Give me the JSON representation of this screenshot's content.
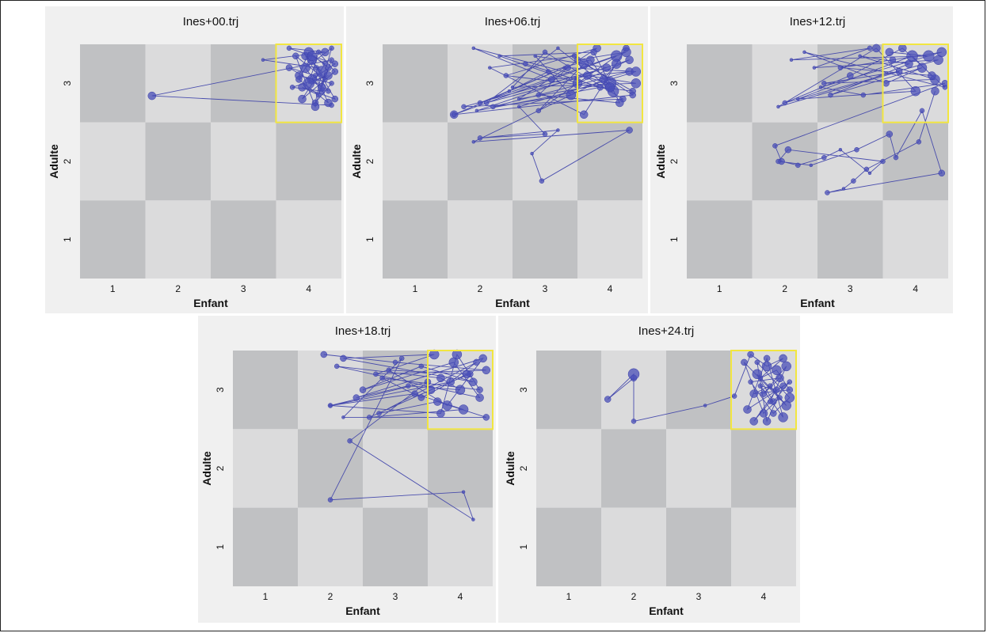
{
  "colors": {
    "page_bg": "#ffffff",
    "panel_bg": "#f0f0f0",
    "cell_dark": "#c0c1c3",
    "cell_light": "#dbdbdc",
    "highlight": "#f2e640",
    "trajectory": "#3a3ea8",
    "marker_fill": "#4a4fb8"
  },
  "chart_data": [
    {
      "type": "scatter",
      "title": "Ines+00.trj",
      "xlabel": "Enfant",
      "ylabel": "Adulte",
      "xticks": [
        "1",
        "2",
        "3",
        "4"
      ],
      "yticks": [
        "1",
        "2",
        "3"
      ],
      "xlim": [
        0.5,
        4.5
      ],
      "ylim": [
        0.5,
        3.5
      ],
      "highlight_cell": [
        4,
        3
      ],
      "x": [
        4.12,
        3.3,
        4.25,
        3.7,
        4.4,
        4.05,
        4.3,
        3.95,
        4.2,
        4.1,
        4.35,
        3.85,
        4.0,
        4.3,
        4.15,
        3.9,
        4.4,
        4.05,
        4.25,
        3.8,
        4.1,
        4.35,
        3.95,
        4.2,
        3.75,
        4.3,
        4.0,
        4.15,
        4.4,
        3.9,
        4.25,
        4.05,
        3.85,
        4.3,
        4.1,
        3.7,
        4.2,
        4.35,
        1.6,
        4.35
      ],
      "y": [
        3.2,
        3.3,
        3.4,
        3.45,
        3.25,
        3.05,
        2.9,
        3.35,
        3.15,
        2.75,
        3.0,
        3.1,
        3.4,
        3.2,
        2.85,
        2.95,
        2.8,
        3.3,
        3.05,
        3.35,
        2.7,
        3.45,
        3.2,
        2.9,
        2.95,
        3.1,
        3.0,
        3.4,
        3.15,
        2.8,
        3.25,
        3.35,
        3.05,
        2.75,
        3.1,
        3.2,
        2.95,
        3.3,
        2.84,
        2.72
      ],
      "size": [
        3,
        2,
        5,
        3,
        4,
        6,
        3,
        5,
        7,
        4,
        3,
        5,
        6,
        4,
        3,
        5,
        4,
        6,
        3,
        4,
        5,
        3,
        6,
        4,
        3,
        5,
        7,
        3,
        4,
        5,
        3,
        6,
        4,
        5,
        3,
        4,
        5,
        3,
        5,
        3
      ]
    },
    {
      "type": "scatter",
      "title": "Ines+06.trj",
      "xlabel": "Enfant",
      "ylabel": "Adulte",
      "xticks": [
        "1",
        "2",
        "3",
        "4"
      ],
      "yticks": [
        "1",
        "2",
        "3"
      ],
      "xlim": [
        0.5,
        4.5
      ],
      "ylim": [
        0.5,
        3.5
      ],
      "highlight_cell": [
        4,
        3
      ],
      "x": [
        3.5,
        4.25,
        2.0,
        3.3,
        1.6,
        4.1,
        2.9,
        3.6,
        4.35,
        2.4,
        3.8,
        2.6,
        4.0,
        1.9,
        3.1,
        4.3,
        2.2,
        3.4,
        2.85,
        3.95,
        1.75,
        4.2,
        3.0,
        2.5,
        4.4,
        3.65,
        2.1,
        3.2,
        4.05,
        2.7,
        3.85,
        1.95,
        4.3,
        3.5,
        2.3,
        3.75,
        4.15,
        2.9,
        3.35,
        4.4,
        2.6,
        3.0,
        2.0,
        3.2,
        2.8,
        2.95,
        4.3,
        1.9,
        3.9,
        4.1,
        4.25,
        3.6,
        2.15,
        3.45,
        4.35,
        1.6,
        2.45,
        3.05,
        3.7,
        4.0
      ],
      "y": [
        3.3,
        3.4,
        2.75,
        3.2,
        2.6,
        3.35,
        2.65,
        3.25,
        2.9,
        3.1,
        3.45,
        2.8,
        3.0,
        3.45,
        3.05,
        3.15,
        2.7,
        2.85,
        3.35,
        3.2,
        2.7,
        2.8,
        3.4,
        2.95,
        3.0,
        3.1,
        2.75,
        3.45,
        2.9,
        3.25,
        2.95,
        2.65,
        3.3,
        3.0,
        3.35,
        3.4,
        2.75,
        2.85,
        3.2,
        3.15,
        2.7,
        2.35,
        2.3,
        2.4,
        2.1,
        1.75,
        2.4,
        2.25,
        3.05,
        3.25,
        3.45,
        2.6,
        3.2,
        3.35,
        2.85,
        2.6,
        2.9,
        3.15,
        3.3,
        2.95
      ],
      "size": [
        4,
        6,
        3,
        2,
        5,
        7,
        3,
        6,
        4,
        3,
        5,
        2,
        8,
        2,
        4,
        5,
        3,
        6,
        2,
        5,
        3,
        4,
        3,
        2,
        6,
        5,
        3,
        2,
        7,
        3,
        4,
        2,
        5,
        6,
        2,
        4,
        5,
        3,
        4,
        6,
        2,
        3,
        3,
        2,
        2,
        3,
        4,
        2,
        5,
        6,
        4,
        5,
        2,
        3,
        4,
        3,
        2,
        3,
        5,
        6
      ]
    },
    {
      "type": "scatter",
      "title": "Ines+12.trj",
      "xlabel": "Enfant",
      "ylabel": "Adulte",
      "xticks": [
        "1",
        "2",
        "3",
        "4"
      ],
      "yticks": [
        "1",
        "2",
        "3"
      ],
      "xlim": [
        0.5,
        4.5
      ],
      "ylim": [
        0.5,
        3.5
      ],
      "highlight_cell": [
        4,
        3
      ],
      "x": [
        3.6,
        4.2,
        2.1,
        3.3,
        2.45,
        4.35,
        2.0,
        3.0,
        3.8,
        4.45,
        2.3,
        3.55,
        4.1,
        2.7,
        3.9,
        3.15,
        4.3,
        2.6,
        3.75,
        1.9,
        3.4,
        4.0,
        2.2,
        3.95,
        4.25,
        2.85,
        3.65,
        4.4,
        2.55,
        3.2,
        4.45,
        1.85,
        1.95,
        2.2,
        2.6,
        2.85,
        3.3,
        3.5,
        2.05,
        1.9,
        2.4,
        3.1,
        3.6,
        3.7,
        4.1,
        4.4,
        2.65,
        2.9,
        3.05,
        3.25,
        4.05,
        4.3
      ],
      "y": [
        3.4,
        3.35,
        3.3,
        3.45,
        3.2,
        3.3,
        2.75,
        3.1,
        3.45,
        2.95,
        3.4,
        3.0,
        3.2,
        2.85,
        3.25,
        3.35,
        3.05,
        3.0,
        3.15,
        2.7,
        3.45,
        2.9,
        2.8,
        3.35,
        3.1,
        3.2,
        3.3,
        3.4,
        2.95,
        2.85,
        3.0,
        2.2,
        2.0,
        1.95,
        2.05,
        2.15,
        1.85,
        2.0,
        2.15,
        2.0,
        1.95,
        2.15,
        2.35,
        2.05,
        2.65,
        1.85,
        1.6,
        1.65,
        1.75,
        1.9,
        2.25,
        2.9
      ],
      "size": [
        5,
        7,
        2,
        3,
        2,
        6,
        3,
        4,
        5,
        3,
        2,
        4,
        6,
        3,
        5,
        2,
        6,
        3,
        4,
        2,
        5,
        6,
        2,
        7,
        5,
        3,
        4,
        6,
        2,
        3,
        4,
        3,
        4,
        3,
        3,
        2,
        2,
        3,
        4,
        3,
        2,
        3,
        4,
        3,
        3,
        4,
        3,
        2,
        3,
        3,
        3,
        5
      ]
    },
    {
      "type": "scatter",
      "title": "Ines+18.trj",
      "xlabel": "Enfant",
      "ylabel": "Adulte",
      "xticks": [
        "1",
        "2",
        "3",
        "4"
      ],
      "yticks": [
        "1",
        "2",
        "3"
      ],
      "xlim": [
        0.5,
        4.5
      ],
      "ylim": [
        0.5,
        3.5
      ],
      "highlight_cell": [
        4,
        3
      ],
      "x": [
        1.9,
        3.0,
        4.4,
        2.7,
        3.6,
        2.2,
        4.2,
        3.4,
        2.5,
        3.9,
        4.3,
        2.1,
        3.7,
        4.0,
        3.2,
        2.4,
        4.35,
        3.8,
        2.9,
        4.15,
        3.55,
        2.6,
        4.05,
        3.3,
        2.0,
        3.85,
        4.25,
        2.75,
        3.65,
        4.4,
        2.2,
        3.1,
        2.0,
        4.05,
        4.2,
        2.3,
        3.5,
        2.0,
        3.7,
        3.95,
        4.3,
        2.8,
        3.4,
        4.1
      ],
      "y": [
        3.45,
        3.35,
        3.25,
        3.2,
        3.45,
        3.4,
        3.1,
        3.3,
        3.0,
        3.35,
        2.9,
        3.3,
        3.15,
        3.0,
        3.05,
        2.9,
        3.4,
        2.8,
        3.25,
        3.2,
        3.0,
        2.65,
        2.75,
        2.95,
        2.8,
        3.1,
        3.35,
        2.7,
        2.85,
        2.65,
        2.65,
        3.4,
        1.6,
        1.7,
        1.35,
        2.35,
        3.1,
        2.8,
        2.7,
        3.45,
        3.0,
        3.15,
        2.9,
        3.2
      ],
      "size": [
        4,
        3,
        5,
        3,
        6,
        4,
        5,
        3,
        4,
        6,
        5,
        3,
        5,
        6,
        3,
        4,
        5,
        6,
        3,
        4,
        5,
        3,
        6,
        4,
        2,
        5,
        4,
        3,
        5,
        4,
        2,
        3,
        3,
        2,
        2,
        3,
        4,
        3,
        5,
        6,
        4,
        3,
        4,
        5
      ]
    },
    {
      "type": "scatter",
      "title": "Ines+24.trj",
      "xlabel": "Enfant",
      "ylabel": "Adulte",
      "xticks": [
        "1",
        "2",
        "3",
        "4"
      ],
      "yticks": [
        "1",
        "2",
        "3"
      ],
      "xlim": [
        0.5,
        4.5
      ],
      "ylim": [
        0.5,
        3.5
      ],
      "highlight_cell": [
        4,
        3
      ],
      "x": [
        2.0,
        1.6,
        2.0,
        2.0,
        3.1,
        3.55,
        3.8,
        4.05,
        4.3,
        3.95,
        4.2,
        4.4,
        3.85,
        4.1,
        4.35,
        3.7,
        4.0,
        4.25,
        3.9,
        4.15,
        4.4,
        3.75,
        4.05,
        4.3,
        3.95,
        4.2,
        3.85,
        4.1,
        4.35,
        4.0,
        4.25,
        3.8,
        4.15,
        4.4,
        3.9,
        4.05,
        4.3
      ],
      "y": [
        3.15,
        2.88,
        3.2,
        2.6,
        2.8,
        2.92,
        3.45,
        3.3,
        3.4,
        3.15,
        3.25,
        3.0,
        2.95,
        3.05,
        2.8,
        3.35,
        2.7,
        2.9,
        3.2,
        2.85,
        3.1,
        2.75,
        3.4,
        2.65,
        3.05,
        3.0,
        2.6,
        2.85,
        3.3,
        2.95,
        3.15,
        3.1,
        2.7,
        2.9,
        3.35,
        2.6,
        3.05
      ],
      "size": [
        4,
        4,
        7,
        3,
        2,
        3,
        4,
        6,
        5,
        3,
        6,
        4,
        5,
        3,
        6,
        4,
        5,
        3,
        6,
        4,
        3,
        5,
        4,
        6,
        3,
        4,
        5,
        3,
        6,
        4,
        5,
        3,
        4,
        6,
        3,
        5,
        4
      ]
    }
  ]
}
